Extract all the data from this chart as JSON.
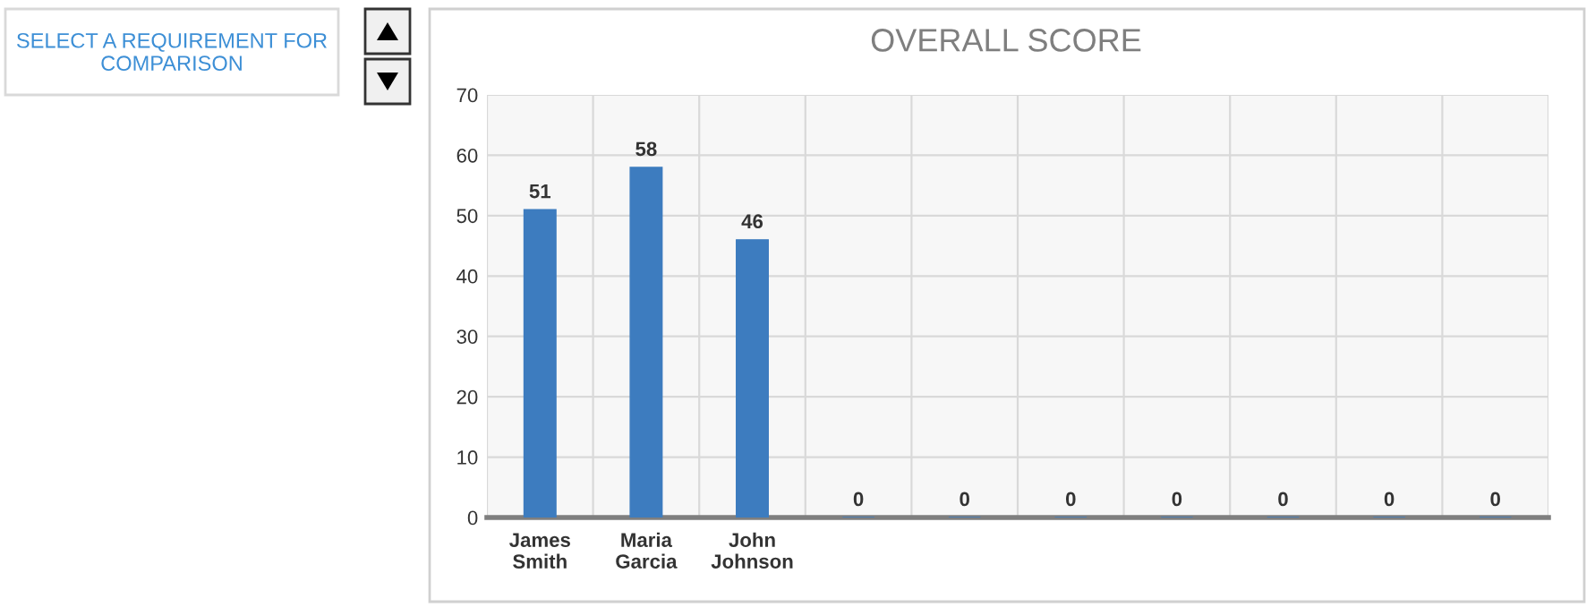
{
  "chart_data": {
    "type": "bar",
    "title": "OVERALL SCORE",
    "categories": [
      "James Smith",
      "Maria Garcia",
      "John Johnson",
      null,
      null,
      null,
      null,
      null,
      null,
      null
    ],
    "values": [
      51,
      58,
      46,
      0,
      0,
      0,
      0,
      0,
      0,
      0
    ],
    "color": "#3d7cbf",
    "ylim": [
      0,
      70
    ],
    "yticks": [
      0,
      10,
      20,
      30,
      40,
      50,
      60,
      70
    ],
    "grid": true,
    "data_labels": true,
    "annotations": [
      "SELECT A REQUIREMENT FOR COMPARISON"
    ]
  }
}
